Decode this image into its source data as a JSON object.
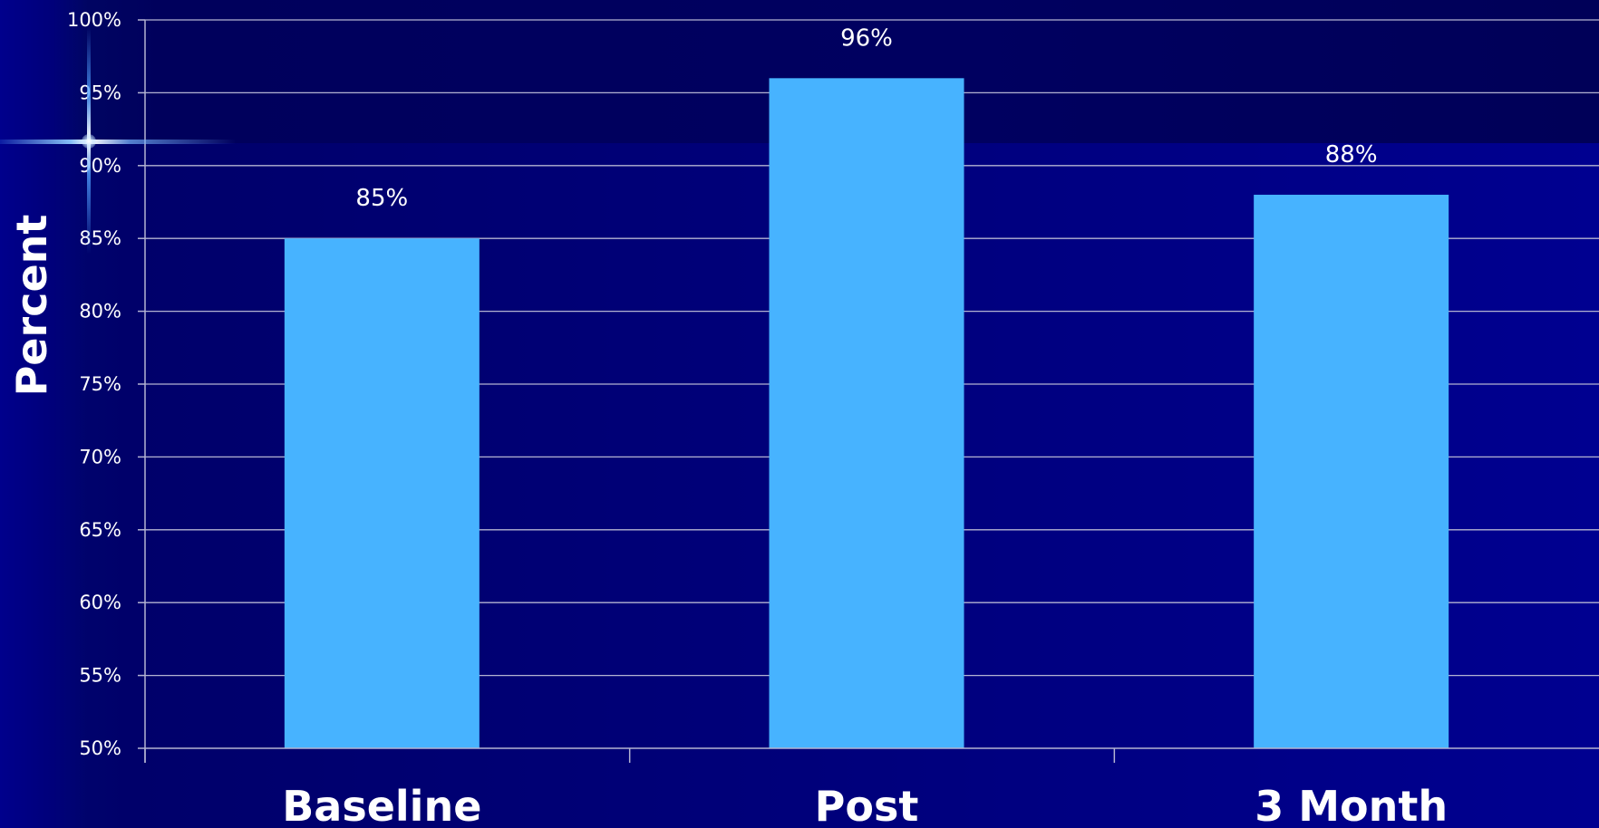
{
  "chart_data": {
    "type": "bar",
    "categories": [
      "Baseline",
      "Post",
      "3 Month"
    ],
    "values": [
      85,
      96,
      88
    ],
    "data_labels": [
      "85%",
      "96%",
      "88%"
    ],
    "ylabel": "Percent",
    "xlabel": "",
    "ylim": [
      50,
      100
    ],
    "y_ticks": [
      50,
      55,
      60,
      65,
      70,
      75,
      80,
      85,
      90,
      95,
      100
    ],
    "y_tick_labels": [
      "50%",
      "55%",
      "60%",
      "65%",
      "70%",
      "75%",
      "80%",
      "85%",
      "90%",
      "95%",
      "100%"
    ],
    "grid": true,
    "legend": "none",
    "colors": {
      "bar": "#47b3ff",
      "gridline": "#b4b4d2",
      "text": "#ffffff",
      "background": "#00007a"
    }
  }
}
